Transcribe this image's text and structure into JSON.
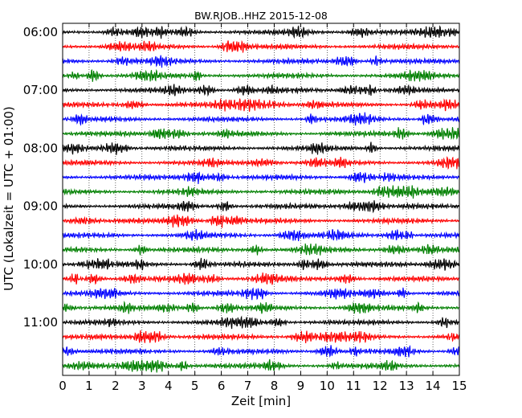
{
  "chart_data": {
    "type": "line",
    "title": "BW.RJOB..HHZ 2015-12-08",
    "xlabel": "Zeit  [min]",
    "ylabel": "UTC (Lokalzeit = UTC + 01:00)",
    "xlim": [
      0,
      15
    ],
    "x_ticks": [
      "0",
      "1",
      "2",
      "3",
      "4",
      "5",
      "6",
      "7",
      "8",
      "9",
      "10",
      "11",
      "12",
      "13",
      "14",
      "15"
    ],
    "y_ticks": [
      "06:00",
      "07:00",
      "08:00",
      "09:00",
      "10:00",
      "11:00"
    ],
    "trace_interval_min": 15,
    "start_time": "06:00",
    "trace_count": 24,
    "trace_colors": [
      "#000000",
      "#ff0000",
      "#0000ff",
      "#008000"
    ],
    "grid": true
  }
}
